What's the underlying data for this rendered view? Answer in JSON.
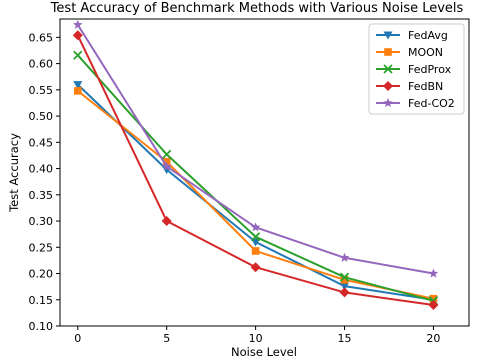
{
  "chart_data": {
    "type": "line",
    "title": "Test Accuracy of Benchmark Methods with Various Noise Levels",
    "xlabel": "Noise Level",
    "ylabel": "Test Accuracy",
    "x": [
      0,
      5,
      10,
      15,
      20
    ],
    "xlim": [
      -1,
      22
    ],
    "ylim": [
      0.1,
      0.685
    ],
    "xticks": [
      0,
      5,
      10,
      15,
      20
    ],
    "yticks": [
      0.1,
      0.15,
      0.2,
      0.25,
      0.3,
      0.35,
      0.4,
      0.45,
      0.5,
      0.55,
      0.6,
      0.65
    ],
    "grid": false,
    "legend_position": "top-right",
    "series": [
      {
        "name": "FedAvg",
        "color": "#1f77b4",
        "marker": "triangle-down",
        "values": [
          0.56,
          0.398,
          0.26,
          0.176,
          0.15
        ]
      },
      {
        "name": "MOON",
        "color": "#ff7f0e",
        "marker": "square",
        "values": [
          0.548,
          0.413,
          0.243,
          0.188,
          0.152
        ]
      },
      {
        "name": "FedProx",
        "color": "#2ca02c",
        "marker": "x",
        "values": [
          0.616,
          0.427,
          0.27,
          0.193,
          0.148
        ]
      },
      {
        "name": "FedBN",
        "color": "#d62728",
        "marker": "diamond",
        "values": [
          0.654,
          0.3,
          0.212,
          0.164,
          0.14
        ]
      },
      {
        "name": "Fed-CO2",
        "color": "#9467bd",
        "marker": "star",
        "values": [
          0.674,
          0.404,
          0.288,
          0.23,
          0.2
        ]
      }
    ]
  }
}
